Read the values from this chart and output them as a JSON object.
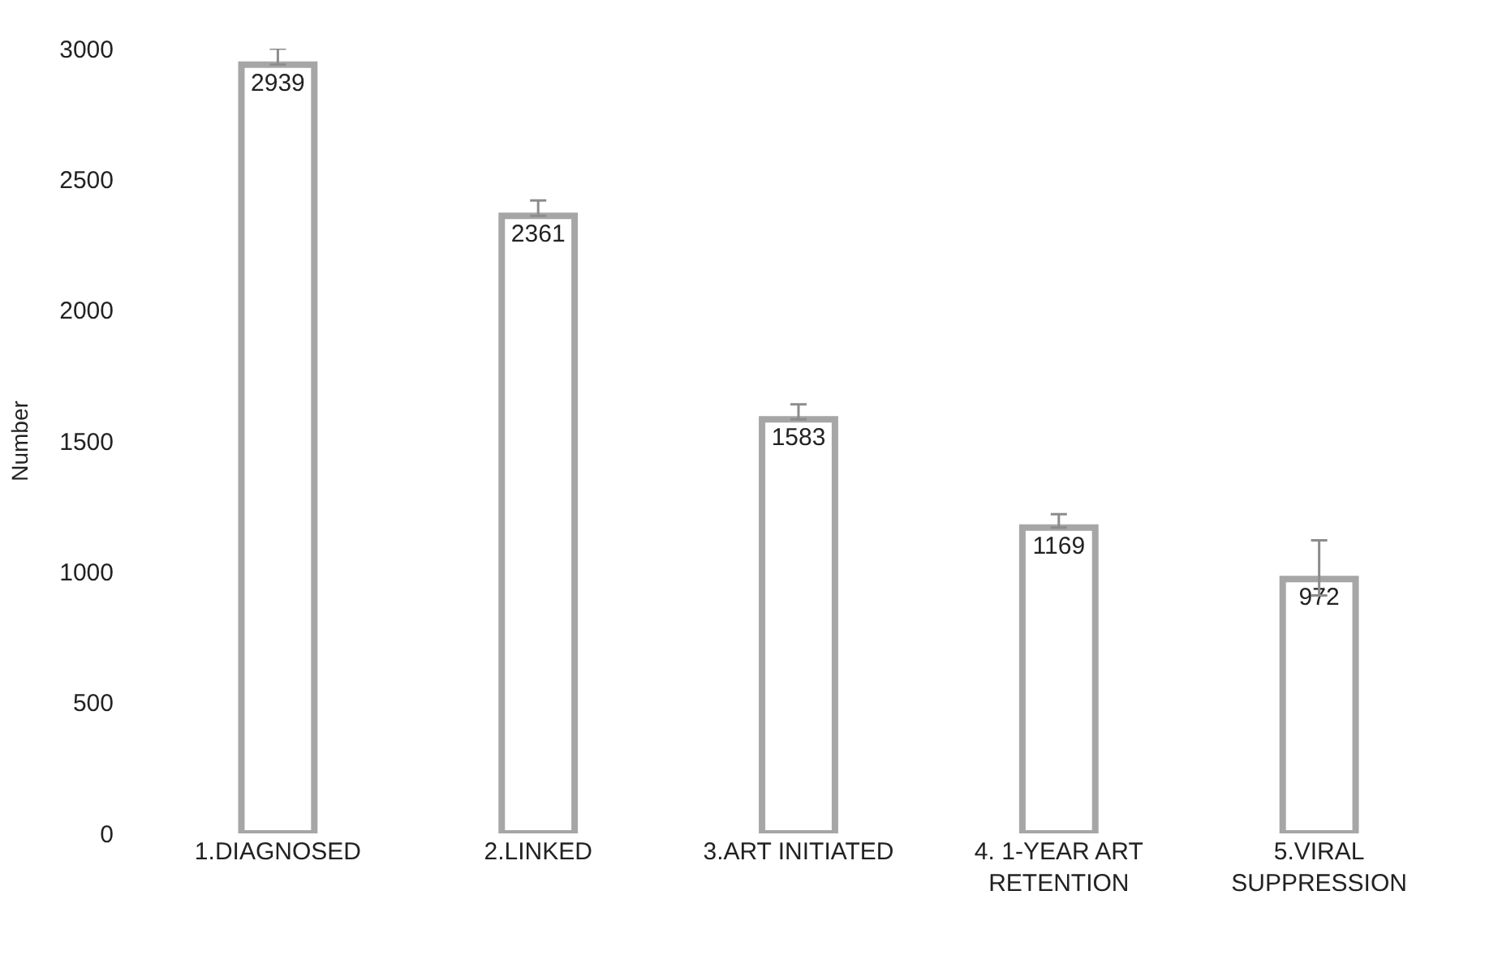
{
  "chart_data": {
    "type": "bar",
    "ylabel": "Number",
    "categories": [
      "1.DIAGNOSED",
      "2.LINKED",
      "3.ART INITIATED",
      "4. 1-YEAR ART RETENTION",
      "5.VIRAL SUPPRESSION"
    ],
    "values": [
      2939,
      2361,
      1583,
      1169,
      972
    ],
    "errors": [
      [
        2939,
        3000
      ],
      [
        2361,
        2420
      ],
      [
        1583,
        1640
      ],
      [
        1169,
        1220
      ],
      [
        910,
        1120
      ]
    ],
    "color": "#a6a6a6",
    "data_labels": true,
    "ylim": [
      0,
      3000
    ],
    "yticks": [
      0,
      500,
      1000,
      1500,
      2000,
      2500,
      3000
    ]
  }
}
